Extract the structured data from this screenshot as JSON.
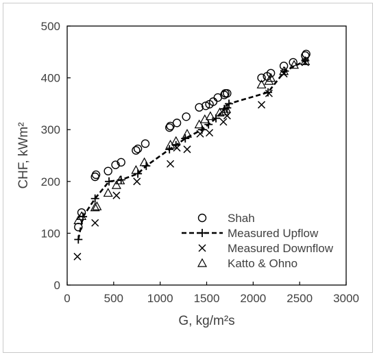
{
  "chart_data": {
    "type": "scatter",
    "xlabel": "G, kg/m²s",
    "ylabel": "CHF, kWm²",
    "xlim": [
      0,
      3000
    ],
    "ylim": [
      0,
      500
    ],
    "xticks": [
      "0",
      "500",
      "1000",
      "1500",
      "2000",
      "2500",
      "3000"
    ],
    "yticks": [
      "0",
      "100",
      "200",
      "300",
      "400",
      "500"
    ],
    "xtick_values": [
      0,
      500,
      1000,
      1500,
      2000,
      2500,
      3000
    ],
    "ytick_values": [
      0,
      100,
      200,
      300,
      400,
      500
    ],
    "grid": false,
    "legend_position": "bottom-right",
    "series": [
      {
        "name": "Shah",
        "marker": "circle",
        "x": [
          120,
          155,
          300,
          310,
          440,
          520,
          580,
          740,
          760,
          840,
          1100,
          1110,
          1180,
          1280,
          1420,
          1490,
          1530,
          1570,
          1620,
          1690,
          1720,
          1700,
          2090,
          2150,
          2190,
          2330,
          2430,
          2560,
          2570
        ],
        "y": [
          112,
          140,
          209,
          213,
          220,
          232,
          237,
          260,
          263,
          273,
          304,
          307,
          313,
          325,
          343,
          346,
          349,
          354,
          362,
          367,
          370,
          370,
          400,
          403,
          409,
          423,
          430,
          443,
          446
        ]
      },
      {
        "name": "Measured Upflow",
        "marker": "plus",
        "line": "dashed",
        "x": [
          120,
          170,
          300,
          450,
          580,
          760,
          850,
          1100,
          1170,
          1270,
          1450,
          1520,
          1600,
          1690,
          1720,
          1740,
          2160,
          2340,
          2560
        ],
        "y": [
          88,
          132,
          167,
          200,
          203,
          215,
          230,
          262,
          270,
          283,
          300,
          310,
          322,
          340,
          342,
          350,
          372,
          413,
          433
        ]
      },
      {
        "name": "Measured Downflow",
        "marker": "x",
        "x": [
          110,
          300,
          530,
          750,
          1110,
          1180,
          1290,
          1430,
          1530,
          1680,
          1720,
          2090,
          2170,
          2330,
          2560
        ],
        "y": [
          55,
          120,
          173,
          200,
          234,
          265,
          262,
          292,
          294,
          315,
          327,
          348,
          370,
          408,
          430
        ]
      },
      {
        "name": "Katto & Ohno",
        "marker": "triangle",
        "x": [
          120,
          155,
          300,
          320,
          440,
          530,
          570,
          740,
          830,
          1110,
          1170,
          1290,
          1420,
          1480,
          1540,
          1640,
          1690,
          1710,
          2090,
          2170,
          2190,
          2330,
          2440,
          2560
        ],
        "y": [
          125,
          133,
          150,
          152,
          178,
          193,
          202,
          222,
          237,
          271,
          278,
          292,
          310,
          320,
          326,
          333,
          335,
          340,
          387,
          394,
          400,
          413,
          425,
          432
        ]
      }
    ]
  }
}
